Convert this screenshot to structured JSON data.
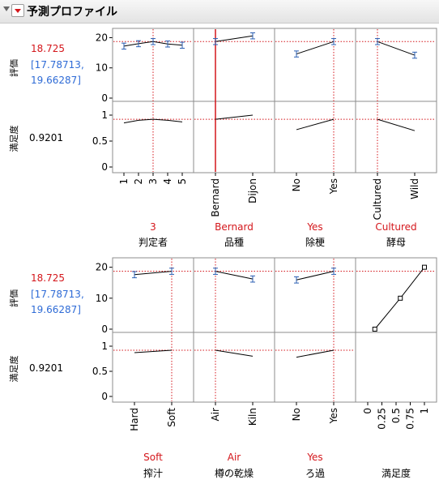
{
  "title": "予測プロファイル",
  "colors": {
    "red": "#d4161b",
    "blue": "#2e6bd6",
    "panel_border": "#8c8c8c",
    "marker": "#2b5fb3"
  },
  "panels": [
    {
      "rating_label": "評価",
      "rating_value": "18.725",
      "rating_ci_line1": "[17.78713,",
      "rating_ci_line2": "19.66287]",
      "satisfaction_label": "満足度",
      "satisfaction_value": "0.9201",
      "rating_ticks": [
        "20",
        "10",
        "0"
      ],
      "satisfaction_ticks": [
        "1",
        "0.5",
        "0"
      ],
      "factors": [
        {
          "name": "判定者",
          "current": "3",
          "levels": [
            "1",
            "2",
            "3",
            "4",
            "5"
          ]
        },
        {
          "name": "品種",
          "current": "Bernard",
          "levels": [
            "Bernard",
            "Dijon"
          ]
        },
        {
          "name": "除梗",
          "current": "Yes",
          "levels": [
            "No",
            "Yes"
          ]
        },
        {
          "name": "酵母",
          "current": "Cultured",
          "levels": [
            "Cultured",
            "Wild"
          ]
        }
      ]
    },
    {
      "rating_label": "評価",
      "rating_value": "18.725",
      "rating_ci_line1": "[17.78713,",
      "rating_ci_line2": "19.66287]",
      "satisfaction_label": "満足度",
      "satisfaction_value": "0.9201",
      "rating_ticks": [
        "20",
        "10",
        "0"
      ],
      "satisfaction_ticks": [
        "1",
        "0.5",
        "0"
      ],
      "factors": [
        {
          "name": "搾汁",
          "current": "Soft",
          "levels": [
            "Hard",
            "Soft"
          ]
        },
        {
          "name": "樽の乾燥",
          "current": "Air",
          "levels": [
            "Air",
            "Kiln"
          ]
        },
        {
          "name": "ろ過",
          "current": "Yes",
          "levels": [
            "No",
            "Yes"
          ]
        },
        {
          "name": "満足度",
          "current": "",
          "levels": [
            "0",
            "0.25",
            "0.5",
            "0.75",
            "1"
          ]
        }
      ]
    }
  ],
  "chart_data": [
    {
      "type": "line",
      "title": "",
      "ylabel": "評価",
      "ylim": [
        0,
        22
      ],
      "current_y": 18.725,
      "series": [
        {
          "factor": "判定者",
          "x": [
            "1",
            "2",
            "3",
            "4",
            "5"
          ],
          "y": [
            17.2,
            18.0,
            18.7,
            17.9,
            17.5
          ],
          "ci_half": [
            1.0,
            1.0,
            1.0,
            1.0,
            1.0
          ]
        },
        {
          "factor": "品種",
          "x": [
            "Bernard",
            "Dijon"
          ],
          "y": [
            18.7,
            20.6
          ],
          "ci_half": [
            1.0,
            1.0
          ]
        },
        {
          "factor": "除梗",
          "x": [
            "No",
            "Yes"
          ],
          "y": [
            14.6,
            18.7
          ],
          "ci_half": [
            1.0,
            1.0
          ]
        },
        {
          "factor": "酵母",
          "x": [
            "Cultured",
            "Wild"
          ],
          "y": [
            18.7,
            14.2
          ],
          "ci_half": [
            1.0,
            1.0
          ]
        }
      ]
    },
    {
      "type": "line",
      "title": "",
      "ylabel": "満足度",
      "ylim": [
        -0.1,
        1.1
      ],
      "current_y": 0.9201,
      "series": [
        {
          "factor": "判定者",
          "x": [
            "1",
            "2",
            "3",
            "4",
            "5"
          ],
          "y": [
            0.85,
            0.9,
            0.92,
            0.9,
            0.87
          ]
        },
        {
          "factor": "品種",
          "x": [
            "Bernard",
            "Dijon"
          ],
          "y": [
            0.92,
            1.0
          ]
        },
        {
          "factor": "除梗",
          "x": [
            "No",
            "Yes"
          ],
          "y": [
            0.72,
            0.92
          ]
        },
        {
          "factor": "酵母",
          "x": [
            "Cultured",
            "Wild"
          ],
          "y": [
            0.92,
            0.7
          ]
        }
      ]
    },
    {
      "type": "line",
      "title": "",
      "ylabel": "評価",
      "ylim": [
        0,
        22
      ],
      "current_y": 18.725,
      "series": [
        {
          "factor": "搾汁",
          "x": [
            "Hard",
            "Soft"
          ],
          "y": [
            17.6,
            18.7
          ],
          "ci_half": [
            1.0,
            1.0
          ]
        },
        {
          "factor": "樽の乾燥",
          "x": [
            "Air",
            "Kiln"
          ],
          "y": [
            18.7,
            16.2
          ],
          "ci_half": [
            1.0,
            1.0
          ]
        },
        {
          "factor": "ろ過",
          "x": [
            "No",
            "Yes"
          ],
          "y": [
            15.9,
            18.7
          ],
          "ci_half": [
            1.0,
            1.0
          ]
        },
        {
          "factor": "満足度",
          "x": [
            0.125,
            0.575,
            1.0
          ],
          "y": [
            0,
            10,
            20
          ]
        }
      ]
    },
    {
      "type": "line",
      "title": "",
      "ylabel": "満足度",
      "ylim": [
        -0.1,
        1.1
      ],
      "current_y": 0.9201,
      "series": [
        {
          "factor": "搾汁",
          "x": [
            "Hard",
            "Soft"
          ],
          "y": [
            0.87,
            0.92
          ]
        },
        {
          "factor": "樽の乾燥",
          "x": [
            "Air",
            "Kiln"
          ],
          "y": [
            0.92,
            0.8
          ]
        },
        {
          "factor": "ろ過",
          "x": [
            "No",
            "Yes"
          ],
          "y": [
            0.78,
            0.92
          ]
        }
      ]
    }
  ]
}
